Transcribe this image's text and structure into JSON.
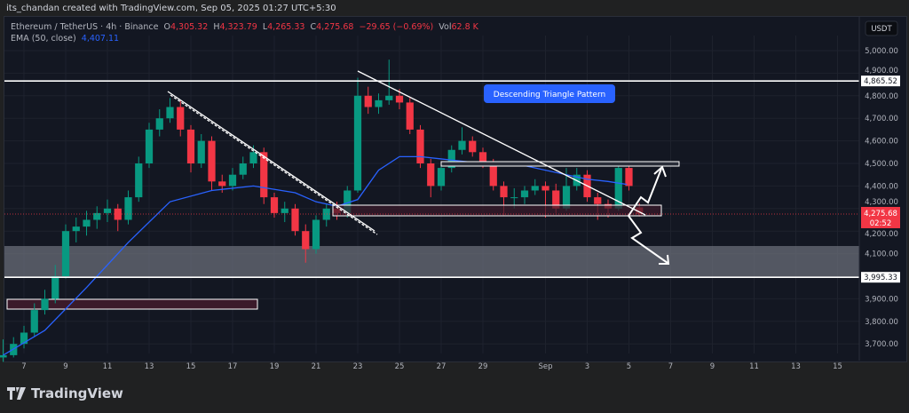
{
  "header": {
    "credit": "its_chandan created with TradingView.com, Sep 05, 2025 01:27 UTC+5:30"
  },
  "legend": {
    "symbol": "Ethereum / TetherUS · 4h · Binance",
    "o_label": "O",
    "o": "4,305.32",
    "h_label": "H",
    "h": "4,323.79",
    "l_label": "L",
    "l": "4,265.33",
    "c_label": "C",
    "c": "4,275.68",
    "change": "−29.65 (−0.69%)",
    "vol_label": "Vol",
    "vol": "62.8 K",
    "ema_label": "EMA (50, close)",
    "ema": "4,407.11"
  },
  "currency": "USDT",
  "brand": "TradingView",
  "colors": {
    "up": "#089981",
    "down": "#f23645",
    "ema": "#2962ff",
    "bg": "#131722"
  },
  "chart_data": {
    "type": "candlestick",
    "ylim": [
      3620,
      5060
    ],
    "yticks": [
      "5,000.00",
      "4,900.00",
      "4,800.00",
      "4,700.00",
      "4,600.00",
      "4,500.00",
      "4,400.00",
      "4,300.00",
      "4,200.00",
      "4,100.00",
      "3,900.00",
      "3,800.00",
      "3,700.00"
    ],
    "ytick_values": [
      5000,
      4900,
      4800,
      4700,
      4600,
      4500,
      4400,
      4300,
      4200,
      4100,
      3900,
      3800,
      3700
    ],
    "xticks": [
      "7",
      "9",
      "11",
      "13",
      "15",
      "17",
      "19",
      "21",
      "23",
      "25",
      "27",
      "29",
      "Sep",
      "3",
      "5",
      "7",
      "9",
      "11",
      "13",
      "15"
    ],
    "xtick_days": [
      0,
      2,
      4,
      6,
      8,
      10,
      12,
      14,
      16,
      18,
      20,
      22,
      25,
      27,
      29,
      31,
      33,
      35,
      37,
      39
    ],
    "candle_start_day": -1,
    "candle_step_days": 0.5,
    "candles": [
      [
        3640,
        3720,
        3620,
        3650
      ],
      [
        3650,
        3730,
        3640,
        3700
      ],
      [
        3700,
        3780,
        3680,
        3750
      ],
      [
        3750,
        3880,
        3730,
        3850
      ],
      [
        3850,
        3940,
        3830,
        3900
      ],
      [
        3900,
        4050,
        3880,
        4000
      ],
      [
        4000,
        4230,
        3990,
        4200
      ],
      [
        4200,
        4260,
        4150,
        4220
      ],
      [
        4220,
        4290,
        4180,
        4250
      ],
      [
        4250,
        4310,
        4210,
        4280
      ],
      [
        4280,
        4340,
        4240,
        4300
      ],
      [
        4300,
        4320,
        4200,
        4250
      ],
      [
        4250,
        4380,
        4230,
        4350
      ],
      [
        4350,
        4530,
        4330,
        4500
      ],
      [
        4500,
        4680,
        4480,
        4650
      ],
      [
        4650,
        4740,
        4620,
        4700
      ],
      [
        4700,
        4790,
        4680,
        4750
      ],
      [
        4750,
        4780,
        4620,
        4650
      ],
      [
        4650,
        4670,
        4460,
        4500
      ],
      [
        4500,
        4630,
        4480,
        4600
      ],
      [
        4600,
        4620,
        4380,
        4420
      ],
      [
        4420,
        4450,
        4370,
        4400
      ],
      [
        4400,
        4480,
        4380,
        4450
      ],
      [
        4450,
        4530,
        4430,
        4500
      ],
      [
        4500,
        4580,
        4480,
        4550
      ],
      [
        4550,
        4570,
        4320,
        4350
      ],
      [
        4350,
        4370,
        4260,
        4280
      ],
      [
        4280,
        4330,
        4240,
        4300
      ],
      [
        4300,
        4320,
        4180,
        4200
      ],
      [
        4200,
        4230,
        4060,
        4120
      ],
      [
        4120,
        4270,
        4100,
        4250
      ],
      [
        4250,
        4320,
        4220,
        4300
      ],
      [
        4300,
        4330,
        4250,
        4280
      ],
      [
        4280,
        4400,
        4260,
        4380
      ],
      [
        4380,
        4880,
        4370,
        4800
      ],
      [
        4800,
        4840,
        4720,
        4750
      ],
      [
        4750,
        4810,
        4720,
        4780
      ],
      [
        4780,
        4960,
        4760,
        4800
      ],
      [
        4800,
        4830,
        4740,
        4770
      ],
      [
        4770,
        4790,
        4630,
        4650
      ],
      [
        4650,
        4670,
        4480,
        4500
      ],
      [
        4500,
        4520,
        4350,
        4400
      ],
      [
        4400,
        4500,
        4380,
        4480
      ],
      [
        4480,
        4580,
        4460,
        4560
      ],
      [
        4560,
        4660,
        4540,
        4600
      ],
      [
        4600,
        4620,
        4530,
        4550
      ],
      [
        4550,
        4570,
        4480,
        4500
      ],
      [
        4500,
        4520,
        4380,
        4400
      ],
      [
        4400,
        4420,
        4270,
        4350
      ],
      [
        4350,
        4390,
        4300,
        4350
      ],
      [
        4350,
        4400,
        4320,
        4380
      ],
      [
        4380,
        4430,
        4360,
        4400
      ],
      [
        4400,
        4420,
        4260,
        4380
      ],
      [
        4380,
        4410,
        4280,
        4300
      ],
      [
        4300,
        4480,
        4290,
        4400
      ],
      [
        4400,
        4480,
        4380,
        4450
      ],
      [
        4450,
        4470,
        4330,
        4350
      ],
      [
        4350,
        4370,
        4250,
        4320
      ],
      [
        4320,
        4340,
        4260,
        4300
      ],
      [
        4300,
        4490,
        4290,
        4480
      ],
      [
        4480,
        4490,
        4380,
        4400
      ],
      [
        4305,
        4324,
        4265,
        4276
      ]
    ],
    "ema": {
      "days": [
        -1,
        1,
        3,
        5,
        7,
        9,
        11,
        13,
        14,
        15,
        16,
        17,
        18,
        19,
        20,
        21,
        22,
        23,
        24,
        25,
        26,
        27,
        28,
        28.9
      ],
      "values": [
        3650,
        3760,
        3950,
        4150,
        4330,
        4380,
        4400,
        4370,
        4330,
        4310,
        4340,
        4470,
        4530,
        4530,
        4520,
        4510,
        4500,
        4500,
        4490,
        4470,
        4450,
        4430,
        4420,
        4407
      ]
    },
    "levels": [
      {
        "price": 4865.52,
        "label": "4,865.52"
      },
      {
        "price": 3995.33,
        "label": "3,995.33"
      }
    ],
    "last_price": {
      "value": 4275.68,
      "label": "4,275.68",
      "countdown": "02:52"
    },
    "annotations": {
      "callout": "Descending Triangle Pattern"
    }
  }
}
